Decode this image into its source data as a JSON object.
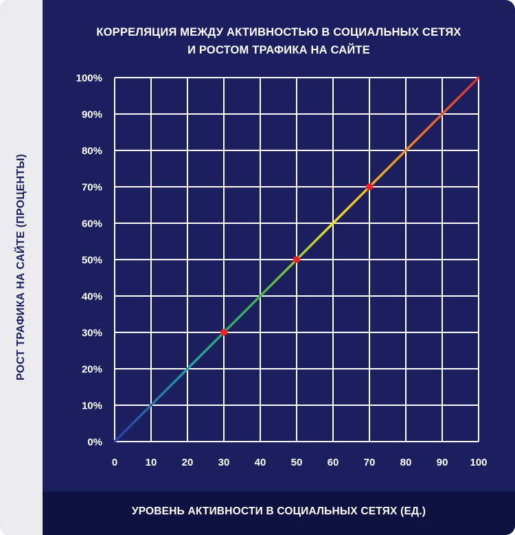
{
  "colors": {
    "background": "#1b1f5e",
    "grid": "#ffffff",
    "point": "#ff1f1f",
    "gradient": [
      "#2a3aa8",
      "#22a0a0",
      "#3db24a",
      "#f0e020",
      "#f08a1a",
      "#e02838"
    ]
  },
  "chart_data": {
    "type": "line",
    "title_lines": [
      "КОРРЕЛЯЦИЯ МЕЖДУ АКТИВНОСТЬЮ В СОЦИАЛЬНЫХ СЕТЯХ",
      "И РОСТОМ ТРАФИКА НА САЙТЕ"
    ],
    "xlabel": "УРОВЕНЬ АКТИВНОСТИ В СОЦИАЛЬНЫХ СЕТЯХ (ЕД.)",
    "ylabel": "РОСТ ТРАФИКА НА САЙТЕ (ПРОЦЕНТЫ)",
    "xlim": [
      0,
      100
    ],
    "ylim": [
      0,
      100
    ],
    "x_ticks": [
      "0",
      "10",
      "20",
      "30",
      "40",
      "50",
      "60",
      "70",
      "80",
      "90",
      "100"
    ],
    "y_ticks": [
      "0%",
      "10%",
      "20%",
      "30%",
      "40%",
      "50%",
      "60%",
      "70%",
      "80%",
      "90%",
      "100%"
    ],
    "grid": true,
    "line": {
      "x": [
        0,
        100
      ],
      "y": [
        0,
        100
      ]
    },
    "points": [
      {
        "x": 30,
        "y": 30
      },
      {
        "x": 50,
        "y": 50
      },
      {
        "x": 70,
        "y": 70
      }
    ]
  }
}
